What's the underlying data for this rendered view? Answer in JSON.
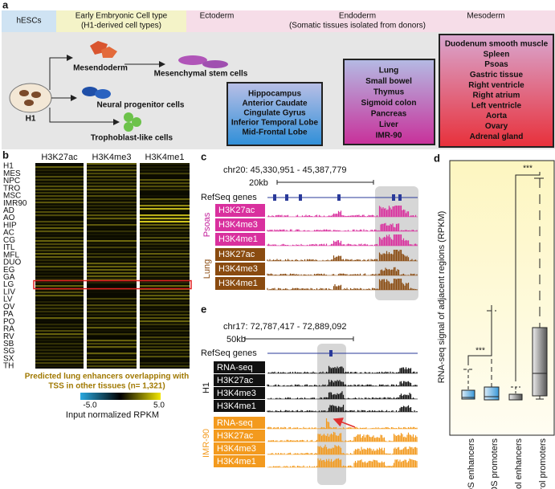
{
  "panel_a": {
    "label": "a",
    "header": {
      "hescs": "hESCs",
      "early": [
        "Early Embryonic Cell type",
        "(H1-derived cell types)"
      ],
      "ectoderm": "Ectoderm",
      "endoderm": [
        "Endoderm",
        "(Somatic tissues isolated from donors)"
      ],
      "mesoderm": "Mesoderm"
    },
    "cells": {
      "h1": "H1",
      "mesendoderm": "Mesendoderm",
      "msc": "Mesenchymal stem cells",
      "npc": "Neural progenitor cells",
      "tro": "Trophoblast-like cells"
    },
    "ectoderm_list": [
      "Hippocampus",
      "Anterior Caudate",
      "Cingulate Gyrus",
      "Inferior Temporal Lobe",
      "Mid-Frontal Lobe"
    ],
    "endoderm_list": [
      "Lung",
      "Small bowel",
      "Thymus",
      "Sigmoid colon",
      "Pancreas",
      "Liver",
      "IMR-90"
    ],
    "mesoderm_list": [
      "Duodenum smooth muscle",
      "Spleen",
      "Psoas",
      "Gastric tissue",
      "Right ventricle",
      "Right atrium",
      "Left ventricle",
      "Aorta",
      "Ovary",
      "Adrenal gland"
    ]
  },
  "panel_b": {
    "label": "b",
    "columns": [
      "H3K27ac",
      "H3K4me3",
      "H3K4me1"
    ],
    "rows": [
      "H1",
      "MES",
      "NPC",
      "TRO",
      "MSC",
      "IMR90",
      "AD",
      "AO",
      "HIP",
      "AC",
      "CG",
      "ITL",
      "MFL",
      "DUO",
      "EG",
      "GA",
      "LG",
      "LIV",
      "LV",
      "OV",
      "PA",
      "PO",
      "RA",
      "RV",
      "SB",
      "SG",
      "SX",
      "TH"
    ],
    "caption": [
      "Predicted lung enhancers overlapping with",
      "TSS in other tissues (n= 1,321)"
    ],
    "colorbar": {
      "min": "-5.0",
      "max": "5.0",
      "title": "Input normalized RPKM"
    }
  },
  "panel_c": {
    "label": "c",
    "coords": "chr20: 45,330,951 - 45,387,779",
    "scale": "20kb",
    "refseq": "RefSeq genes",
    "groups": [
      {
        "name": "Psoas",
        "tracks": [
          "H3K27ac",
          "H3K4me3",
          "H3K4me1"
        ]
      },
      {
        "name": "Lung",
        "tracks": [
          "H3K27ac",
          "H3K4me3",
          "H3K4me1"
        ]
      }
    ]
  },
  "panel_e": {
    "label": "e",
    "coords": "chr17: 72,787,417 - 72,889,092",
    "scale": "50kb",
    "refseq": "RefSeq genes",
    "groups": [
      {
        "name": "H1",
        "tracks": [
          "RNA-seq",
          "H3K27ac",
          "H3K4me3",
          "H3K4me1"
        ]
      },
      {
        "name": "IMR-90",
        "tracks": [
          "RNA-seq",
          "H3K27ac",
          "H3K4me3",
          "H3K4me1"
        ]
      }
    ]
  },
  "panel_d": {
    "label": "d",
    "ylabel": "RNA-seq signal of adjacent regions (RPKM)",
    "categories": [
      "cREDS enhancers",
      "cREDS promoters",
      "Control enhancers",
      "Control promoters"
    ],
    "significance": [
      "***",
      "***"
    ]
  }
}
